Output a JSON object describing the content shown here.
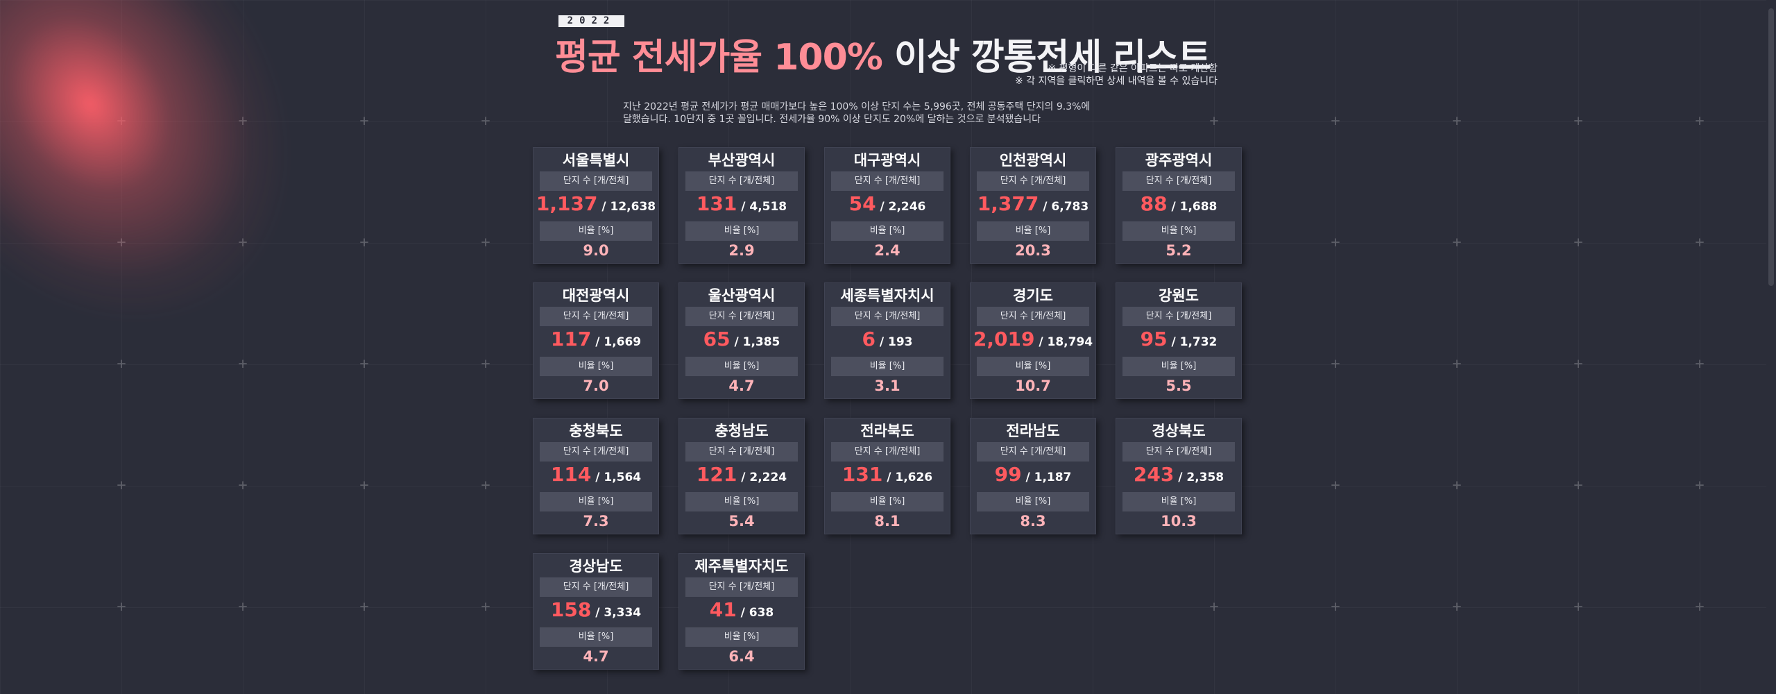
{
  "header": {
    "year": "2022",
    "title_accent": "평균 전세가율 100%",
    "title_rest": " 이상 깡통전세 리스트",
    "notes": [
      "※ 평형이 다른 같은 아파트는 따로 계산함",
      "※ 각 지역을 클릭하면 상세 내역을 볼 수 있습니다"
    ],
    "description_lines": [
      "지난 2022년 평균 전세가가 평균 매매가보다 높은 100% 이상 단지 수는 5,996곳, 전체 공동주택 단지의 9.3%에",
      "달했습니다. 10단지 중 1곳 꼴입니다. 전세가율 90% 이상 단지도 20%에 달하는 것으로 분석됐습니다"
    ]
  },
  "labels": {
    "count_label": "단지 수 [개/전체]",
    "ratio_label": "비율 [%]",
    "separator": " / "
  },
  "regions": [
    {
      "name": "서울특별시",
      "count": "1,137",
      "total": "12,638",
      "ratio": "9.0"
    },
    {
      "name": "부산광역시",
      "count": "131",
      "total": "4,518",
      "ratio": "2.9"
    },
    {
      "name": "대구광역시",
      "count": "54",
      "total": "2,246",
      "ratio": "2.4"
    },
    {
      "name": "인천광역시",
      "count": "1,377",
      "total": "6,783",
      "ratio": "20.3"
    },
    {
      "name": "광주광역시",
      "count": "88",
      "total": "1,688",
      "ratio": "5.2"
    },
    {
      "name": "대전광역시",
      "count": "117",
      "total": "1,669",
      "ratio": "7.0"
    },
    {
      "name": "울산광역시",
      "count": "65",
      "total": "1,385",
      "ratio": "4.7"
    },
    {
      "name": "세종특별자치시",
      "count": "6",
      "total": "193",
      "ratio": "3.1"
    },
    {
      "name": "경기도",
      "count": "2,019",
      "total": "18,794",
      "ratio": "10.7"
    },
    {
      "name": "강원도",
      "count": "95",
      "total": "1,732",
      "ratio": "5.5"
    },
    {
      "name": "충청북도",
      "count": "114",
      "total": "1,564",
      "ratio": "7.3"
    },
    {
      "name": "충청남도",
      "count": "121",
      "total": "2,224",
      "ratio": "5.4"
    },
    {
      "name": "전라북도",
      "count": "131",
      "total": "1,626",
      "ratio": "8.1"
    },
    {
      "name": "전라남도",
      "count": "99",
      "total": "1,187",
      "ratio": "8.3"
    },
    {
      "name": "경상북도",
      "count": "243",
      "total": "2,358",
      "ratio": "10.3"
    },
    {
      "name": "경상남도",
      "count": "158",
      "total": "3,334",
      "ratio": "4.7"
    },
    {
      "name": "제주특별자치도",
      "count": "41",
      "total": "638",
      "ratio": "6.4"
    }
  ],
  "colors": {
    "background": "#2b2d39",
    "card": "#353846",
    "label_bar": "#4c4f5e",
    "count_accent": "#ff5a5f",
    "ratio_accent": "#ffb3b8",
    "title_accent": "#ff8d96",
    "glow": "#ff5f69"
  }
}
